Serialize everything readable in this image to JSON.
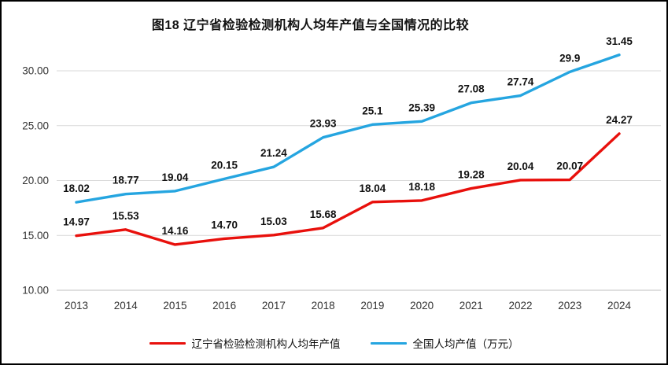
{
  "page": {
    "background": "#ffffff",
    "border_color": "#000000"
  },
  "chart_data": {
    "type": "line",
    "title": "图18 辽宁省检验检测机构人均年产值与全国情况的比较",
    "categories": [
      "2013",
      "2014",
      "2015",
      "2016",
      "2017",
      "2018",
      "2019",
      "2020",
      "2021",
      "2022",
      "2023",
      "2024"
    ],
    "series": [
      {
        "name": "辽宁省检验检测机构人均年产值",
        "color": "#e8100c",
        "values": [
          14.97,
          15.53,
          14.16,
          14.7,
          15.03,
          15.68,
          18.04,
          18.18,
          19.28,
          20.04,
          20.07,
          24.27
        ],
        "labels": [
          "14.97",
          "15.53",
          "14.16",
          "14.70",
          "15.03",
          "15.68",
          "18.04",
          "18.18",
          "19.28",
          "20.04",
          "20.07",
          "24.27"
        ]
      },
      {
        "name": "全国人均产值（万元）",
        "color": "#25a5e0",
        "values": [
          18.02,
          18.77,
          19.04,
          20.15,
          21.24,
          23.93,
          25.1,
          25.39,
          27.08,
          27.74,
          29.9,
          31.45
        ],
        "labels": [
          "18.02",
          "18.77",
          "19.04",
          "20.15",
          "21.24",
          "23.93",
          "25.1",
          "25.39",
          "27.08",
          "27.74",
          "29.9",
          "31.45"
        ]
      }
    ],
    "y_axis": {
      "min": 10,
      "max": 32,
      "ticks": [
        10,
        15,
        20,
        25,
        30
      ],
      "tick_labels": [
        "10.00",
        "15.00",
        "20.00",
        "25.00",
        "30.00"
      ]
    },
    "x_label": "",
    "y_label": "",
    "grid": true,
    "gridline_color": "#d9d9d9",
    "axis_text_color": "#333333",
    "data_label_color": "#111111",
    "legend_position": "bottom"
  }
}
